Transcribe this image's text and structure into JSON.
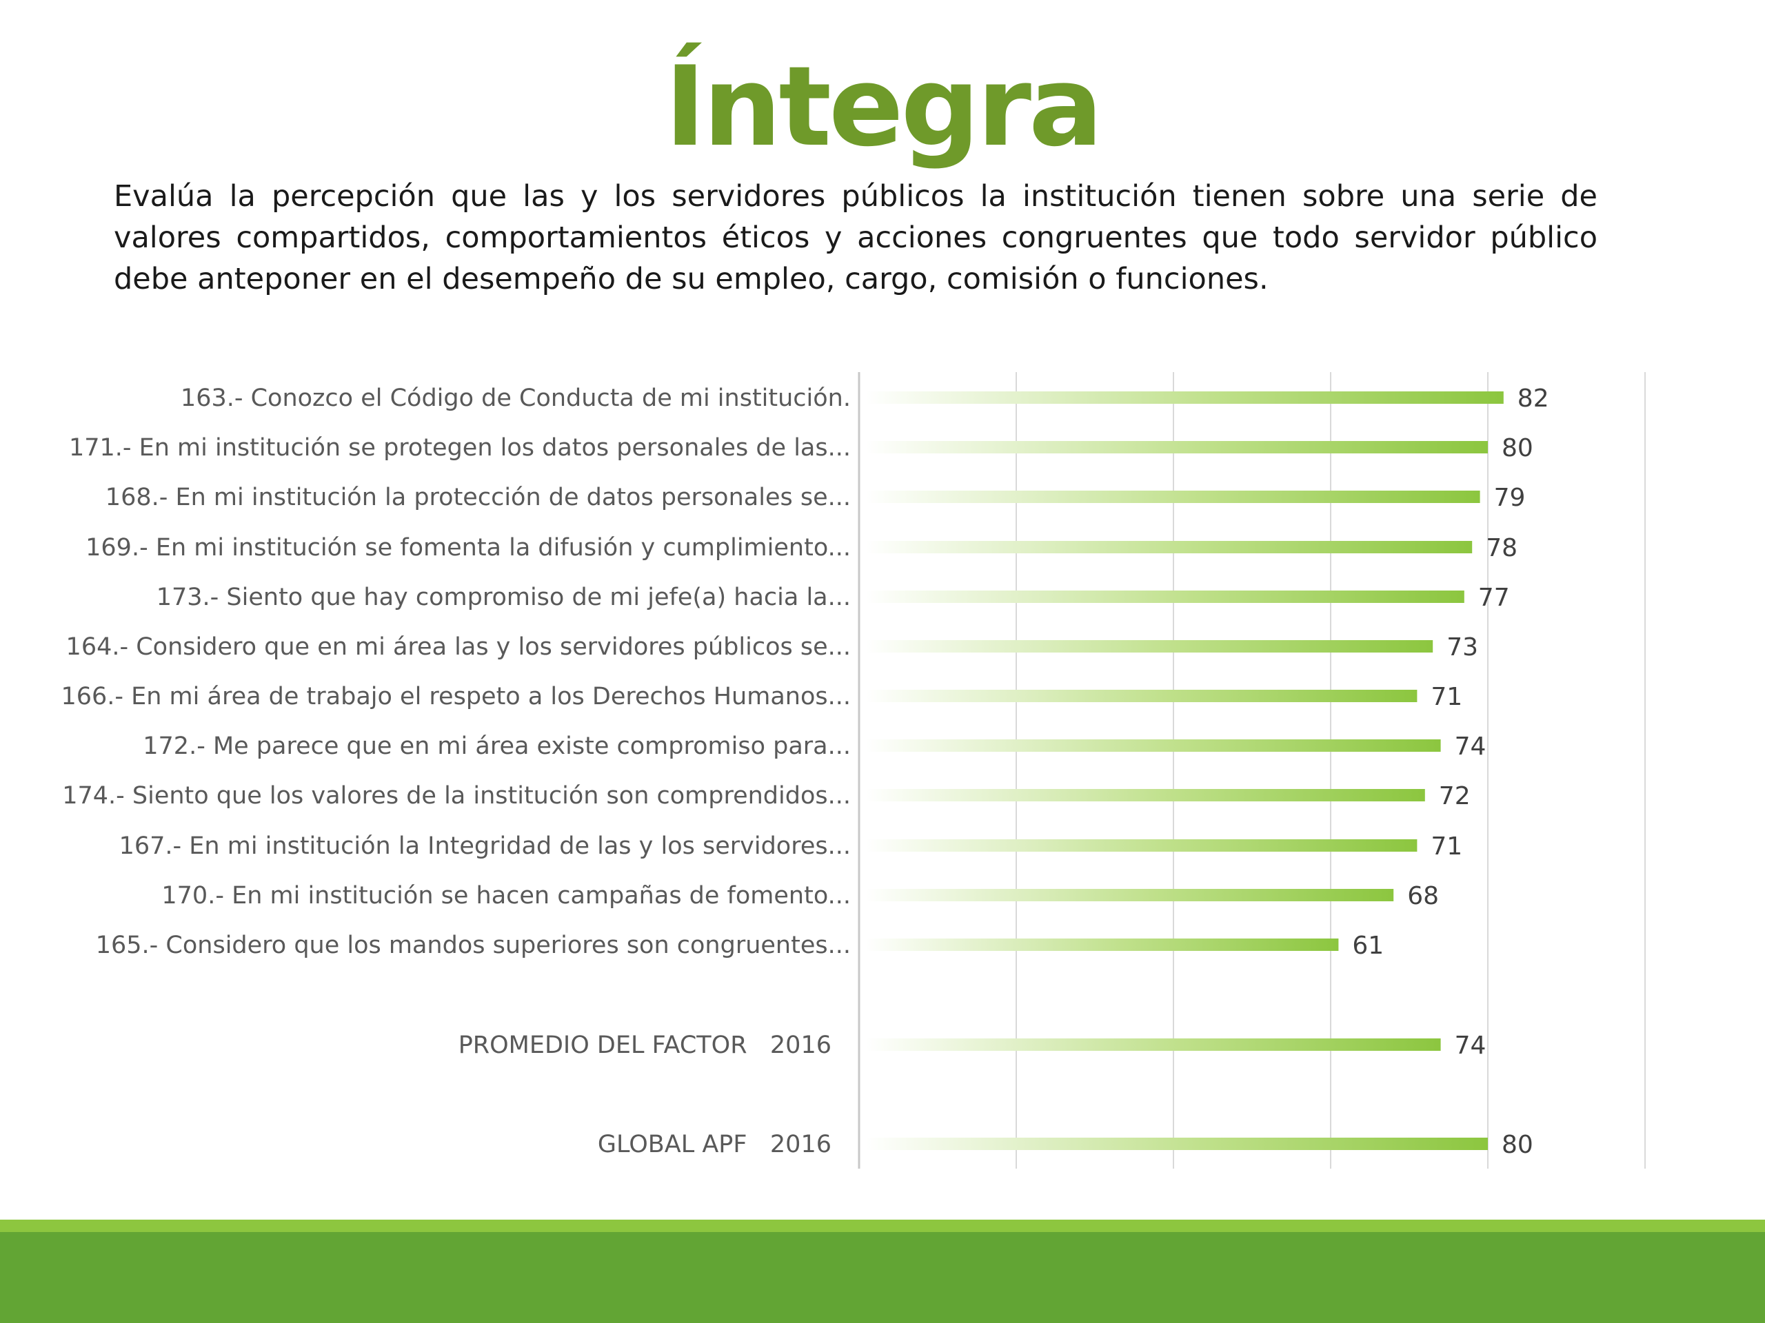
{
  "slide": {
    "title": "Íntegra",
    "description": "Evalúa la percepción que las y los servidores públicos la institución tienen sobre una serie de valores compartidos, comportamientos éticos y acciones congruentes que todo servidor público debe anteponer en el desempeño de su empleo, cargo, comisión o funciones."
  },
  "colors": {
    "title": "#6f9a2a",
    "bar": "#8cc63f",
    "bar_fade": "#ffffff",
    "footer_stripe": "#8dc63f",
    "footer_band": "#62a534",
    "grid": "#d9d9d9"
  },
  "chart_data": {
    "type": "bar",
    "orientation": "horizontal",
    "categories": [
      "163.- Conozco el Código de Conducta de mi institución.",
      "171.- En mi institución se protegen los datos personales de las...",
      "168.- En mi institución la protección de datos personales se...",
      "169.- En mi institución se fomenta la difusión y cumplimiento...",
      "173.- Siento que hay compromiso de mi jefe(a) hacia la...",
      "164.- Considero que en mi área las y los servidores públicos se...",
      "166.- En mi área de trabajo el respeto a los Derechos Humanos...",
      "172.- Me parece que en mi área existe compromiso para...",
      "174.- Siento que los valores de la institución son comprendidos...",
      "167.- En mi institución la Integridad de las y los servidores...",
      "170.- En mi institución se hacen campañas de fomento...",
      "165.- Considero que los mandos superiores son congruentes...",
      "PROMEDIO DEL FACTOR   2016",
      "GLOBAL APF   2016"
    ],
    "values": [
      82,
      80,
      79,
      78,
      77,
      73,
      71,
      74,
      72,
      71,
      68,
      61,
      74,
      80
    ],
    "value_labels": [
      "82",
      "80",
      "79",
      "78",
      "77",
      "73",
      "71",
      "74",
      "72",
      "71",
      "68",
      "61",
      "74",
      "80"
    ],
    "xlim": [
      0,
      100
    ],
    "x_gridlines": [
      0,
      20,
      40,
      60,
      80,
      100
    ],
    "grid": true,
    "legend": "none"
  }
}
